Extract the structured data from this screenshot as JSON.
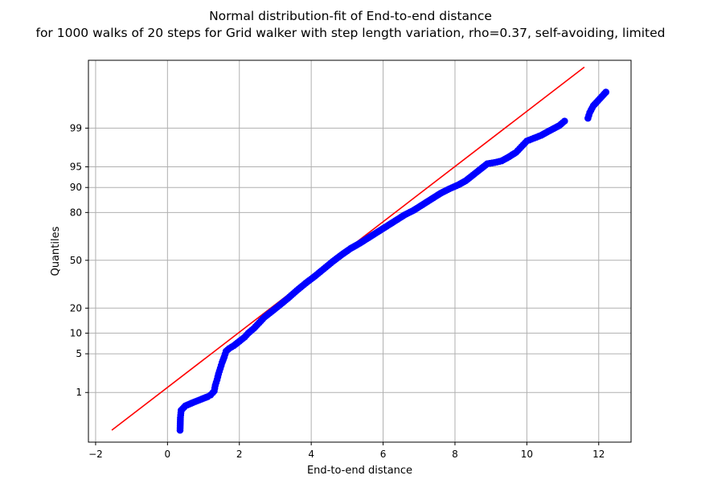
{
  "chart_data": {
    "type": "scatter",
    "title": "Normal distribution-fit of End-to-end distance",
    "subtitle": "for 1000 walks of 20 steps for Grid walker with step length variation, rho=0.37, self-avoiding, limited",
    "xlabel": "End-to-end distance",
    "ylabel": "Quantiles",
    "xlim": [
      -2.2,
      12.9
    ],
    "ylim_probit": [
      -3.2,
      3.52
    ],
    "xticks": [
      -2,
      0,
      2,
      4,
      6,
      8,
      10,
      12
    ],
    "yticks": [
      1,
      5,
      10,
      20,
      50,
      80,
      90,
      95,
      99
    ],
    "y_scale": "normal-probability",
    "grid": true,
    "fit_line": {
      "color": "#ff0000",
      "x": [
        -1.55,
        11.6
      ],
      "probit": [
        -2.99,
        3.4
      ]
    },
    "series": [
      {
        "color": "#0000ff",
        "points": [
          [
            0.35,
            -2.99
          ],
          [
            0.36,
            -2.77
          ],
          [
            0.38,
            -2.64
          ],
          [
            0.5,
            -2.56
          ],
          [
            0.72,
            -2.5
          ],
          [
            1.12,
            -2.4
          ],
          [
            1.2,
            -2.37
          ],
          [
            1.26,
            -2.33
          ],
          [
            1.3,
            -2.3
          ],
          [
            1.33,
            -2.2
          ],
          [
            1.38,
            -2.1
          ],
          [
            1.42,
            -2.0
          ],
          [
            1.47,
            -1.9
          ],
          [
            1.52,
            -1.8
          ],
          [
            1.58,
            -1.7
          ],
          [
            1.63,
            -1.6
          ],
          [
            1.72,
            -1.55
          ],
          [
            1.85,
            -1.5
          ],
          [
            1.95,
            -1.45
          ],
          [
            2.05,
            -1.4
          ],
          [
            2.15,
            -1.35
          ],
          [
            2.25,
            -1.28
          ],
          [
            2.4,
            -1.2
          ],
          [
            2.55,
            -1.1
          ],
          [
            2.7,
            -1.0
          ],
          [
            2.9,
            -0.9
          ],
          [
            3.1,
            -0.8
          ],
          [
            3.35,
            -0.67
          ],
          [
            3.6,
            -0.53
          ],
          [
            3.85,
            -0.4
          ],
          [
            4.1,
            -0.28
          ],
          [
            4.35,
            -0.15
          ],
          [
            4.6,
            -0.02
          ],
          [
            4.85,
            0.1
          ],
          [
            5.1,
            0.21
          ],
          [
            5.35,
            0.3
          ],
          [
            5.6,
            0.4
          ],
          [
            5.85,
            0.5
          ],
          [
            6.1,
            0.6
          ],
          [
            6.35,
            0.7
          ],
          [
            6.6,
            0.8
          ],
          [
            6.85,
            0.88
          ],
          [
            7.1,
            0.98
          ],
          [
            7.35,
            1.08
          ],
          [
            7.6,
            1.18
          ],
          [
            7.85,
            1.26
          ],
          [
            8.1,
            1.33
          ],
          [
            8.3,
            1.4
          ],
          [
            8.5,
            1.5
          ],
          [
            8.7,
            1.6
          ],
          [
            8.9,
            1.7
          ],
          [
            9.1,
            1.72
          ],
          [
            9.3,
            1.75
          ],
          [
            9.5,
            1.82
          ],
          [
            9.7,
            1.9
          ],
          [
            9.85,
            2.0
          ],
          [
            10.0,
            2.1
          ],
          [
            10.2,
            2.15
          ],
          [
            10.4,
            2.2
          ],
          [
            10.6,
            2.27
          ],
          [
            10.9,
            2.37
          ],
          [
            11.05,
            2.45
          ],
          [
            11.7,
            2.5
          ],
          [
            11.75,
            2.6
          ],
          [
            11.85,
            2.72
          ],
          [
            12.2,
            2.96
          ]
        ]
      }
    ]
  }
}
